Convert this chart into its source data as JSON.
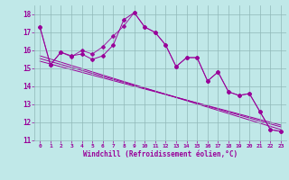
{
  "xlabel": "Windchill (Refroidissement éolien,°C)",
  "background_color": "#c0e8e8",
  "grid_color": "#90b8b8",
  "line_color": "#990099",
  "x_data": [
    0,
    1,
    2,
    3,
    4,
    5,
    6,
    7,
    8,
    9,
    10,
    11,
    12,
    13,
    14,
    15,
    16,
    17,
    18,
    19,
    20,
    21,
    22,
    23
  ],
  "series1": [
    17.3,
    15.2,
    15.9,
    15.7,
    15.8,
    15.5,
    15.7,
    16.3,
    17.7,
    18.1,
    17.3,
    17.0,
    16.3,
    15.1,
    15.6,
    15.6,
    14.3,
    14.8,
    13.7,
    13.5,
    13.6,
    12.6,
    11.6,
    11.5
  ],
  "series2": [
    17.3,
    15.2,
    15.9,
    15.65,
    16.0,
    15.8,
    16.2,
    16.8,
    17.35,
    18.1,
    17.3,
    17.0,
    16.3,
    15.1,
    15.6,
    15.6,
    14.3,
    14.8,
    13.7,
    13.5,
    13.6,
    12.6,
    11.6,
    11.5
  ],
  "trend1_x": [
    0,
    23
  ],
  "trend1_y": [
    15.7,
    11.6
  ],
  "trend2_x": [
    0,
    23
  ],
  "trend2_y": [
    15.55,
    11.75
  ],
  "trend3_x": [
    0,
    23
  ],
  "trend3_y": [
    15.4,
    11.85
  ],
  "ylim": [
    11,
    18.5
  ],
  "xlim": [
    -0.5,
    23.5
  ],
  "yticks": [
    11,
    12,
    13,
    14,
    15,
    16,
    17,
    18
  ],
  "xticks": [
    0,
    1,
    2,
    3,
    4,
    5,
    6,
    7,
    8,
    9,
    10,
    11,
    12,
    13,
    14,
    15,
    16,
    17,
    18,
    19,
    20,
    21,
    22,
    23
  ]
}
